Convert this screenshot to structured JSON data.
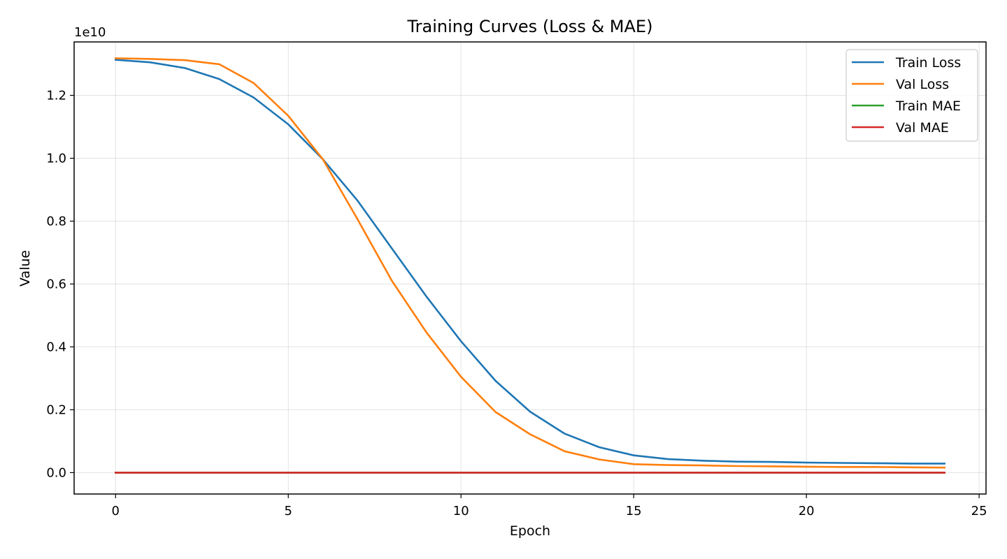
{
  "chart_data": {
    "type": "line",
    "title": "Training Curves (Loss & MAE)",
    "xlabel": "Epoch",
    "ylabel": "Value",
    "y_offset_label": "1e10",
    "y_multiplier": 10000000000,
    "xlim": [
      -1.2,
      25.2
    ],
    "ylim": [
      -0.068,
      1.37
    ],
    "x_ticks": [
      0,
      5,
      10,
      15,
      20,
      25
    ],
    "y_ticks": [
      0.0,
      0.2,
      0.4,
      0.6,
      0.8,
      1.0,
      1.2
    ],
    "y_tick_labels": [
      "0.0",
      "0.2",
      "0.4",
      "0.6",
      "0.8",
      "1.0",
      "1.2"
    ],
    "grid": true,
    "legend_position": "top-right",
    "x": [
      0,
      1,
      2,
      3,
      4,
      5,
      6,
      7,
      8,
      9,
      10,
      11,
      12,
      13,
      14,
      15,
      16,
      17,
      18,
      19,
      20,
      21,
      22,
      23,
      24
    ],
    "series": [
      {
        "name": "Train Loss",
        "color": "#1f77b4",
        "values": [
          1.313,
          1.305,
          1.287,
          1.252,
          1.193,
          1.108,
          0.997,
          0.866,
          0.713,
          0.56,
          0.418,
          0.292,
          0.194,
          0.124,
          0.081,
          0.055,
          0.043,
          0.038,
          0.035,
          0.034,
          0.032,
          0.031,
          0.03,
          0.029,
          0.029
        ]
      },
      {
        "name": "Val Loss",
        "color": "#ff7f0e",
        "values": [
          1.318,
          1.316,
          1.312,
          1.299,
          1.239,
          1.135,
          0.997,
          0.807,
          0.61,
          0.446,
          0.305,
          0.193,
          0.122,
          0.068,
          0.042,
          0.027,
          0.024,
          0.023,
          0.021,
          0.02,
          0.019,
          0.018,
          0.018,
          0.017,
          0.016
        ]
      },
      {
        "name": "Train MAE",
        "color": "#2ca02c",
        "values": [
          0,
          0,
          0,
          0,
          0,
          0,
          0,
          0,
          0,
          0,
          0,
          0,
          0,
          0,
          0,
          0,
          0,
          0,
          0,
          0,
          0,
          0,
          0,
          0,
          0
        ]
      },
      {
        "name": "Val MAE",
        "color": "#d62728",
        "values": [
          0,
          0,
          0,
          0,
          0,
          0,
          0,
          0,
          0,
          0,
          0,
          0,
          0,
          0,
          0,
          0,
          0,
          0,
          0,
          0,
          0,
          0,
          0,
          0,
          0
        ]
      }
    ]
  }
}
